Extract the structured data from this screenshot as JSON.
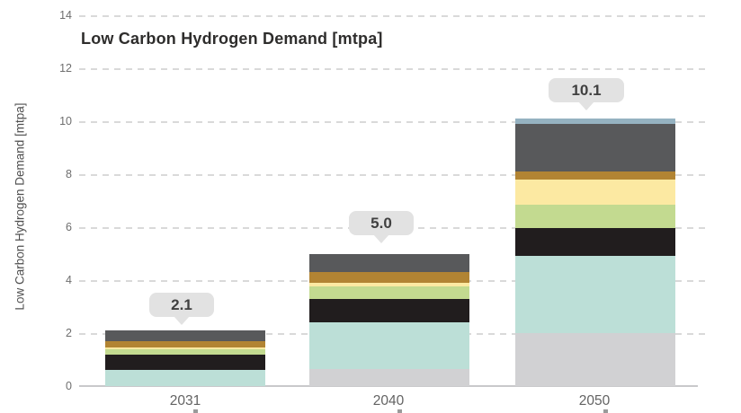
{
  "chart_data": {
    "type": "bar",
    "stacked": true,
    "title": "Low Carbon Hydrogen Demand [mtpa]",
    "ylabel": "Low Carbon Hydrogen Demand [mtpa]",
    "xlabel": "",
    "ylim": [
      0,
      14
    ],
    "yticks": [
      0,
      2,
      4,
      6,
      8,
      10,
      12,
      14
    ],
    "grid": "horizontal-dashed",
    "legend": "none",
    "categories": [
      "2031",
      "2040",
      "2050"
    ],
    "totals": [
      2.1,
      5.0,
      10.1
    ],
    "total_labels": [
      "2.1",
      "5.0",
      "10.1"
    ],
    "series": [
      {
        "name": "light-gray",
        "color": "#d1d1d3",
        "values": [
          0,
          0.65,
          2.0
        ]
      },
      {
        "name": "pale-teal",
        "color": "#bcdfd7",
        "values": [
          0.6,
          1.75,
          2.9
        ]
      },
      {
        "name": "black",
        "color": "#211d1e",
        "values": [
          0.6,
          0.9,
          1.05
        ]
      },
      {
        "name": "light-green",
        "color": "#c3da90",
        "values": [
          0.2,
          0.45,
          0.9
        ]
      },
      {
        "name": "pale-yellow",
        "color": "#fce9a2",
        "values": [
          0.05,
          0.15,
          0.95
        ]
      },
      {
        "name": "ochre",
        "color": "#b28433",
        "values": [
          0.25,
          0.4,
          0.3
        ]
      },
      {
        "name": "dark-gray",
        "color": "#58595b",
        "values": [
          0.4,
          0.7,
          1.8
        ]
      },
      {
        "name": "blue-gray",
        "color": "#95b2c1",
        "values": [
          0,
          0,
          0.2
        ]
      }
    ]
  },
  "colors": {
    "callout_bg": "#e2e2e2",
    "callout_text": "#404040",
    "gridline": "#d9d9d9",
    "axis_line": "#c9c9cb",
    "tick_text": "#6e6e6e",
    "title_text": "#2e2d2c"
  }
}
